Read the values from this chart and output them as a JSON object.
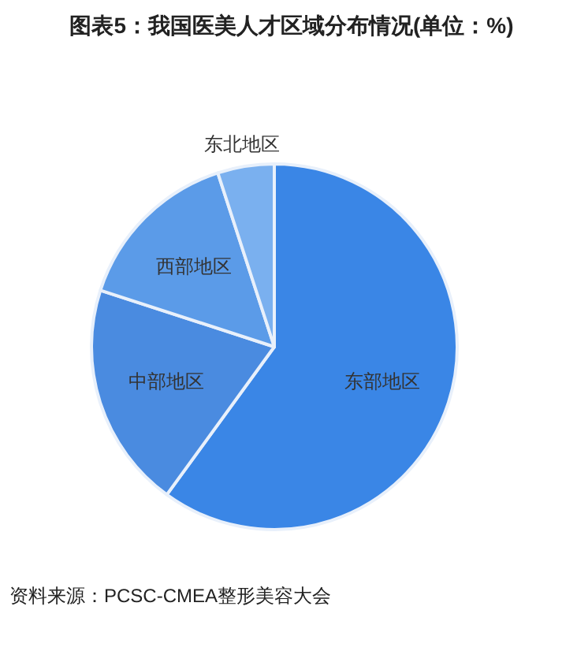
{
  "chart_data": {
    "type": "pie",
    "title": "图表5：我国医美人才区域分布情况(单位：%)",
    "categories": [
      "东部地区",
      "中部地区",
      "西部地区",
      "东北地区"
    ],
    "values": [
      60,
      20,
      15,
      5
    ],
    "colors": [
      "#3a86e6",
      "#4a8be0",
      "#5b9be8",
      "#7ab0ef"
    ],
    "legend": false,
    "annotations": [
      "资料来源：PCSC-CMEA整形美容大会"
    ]
  }
}
